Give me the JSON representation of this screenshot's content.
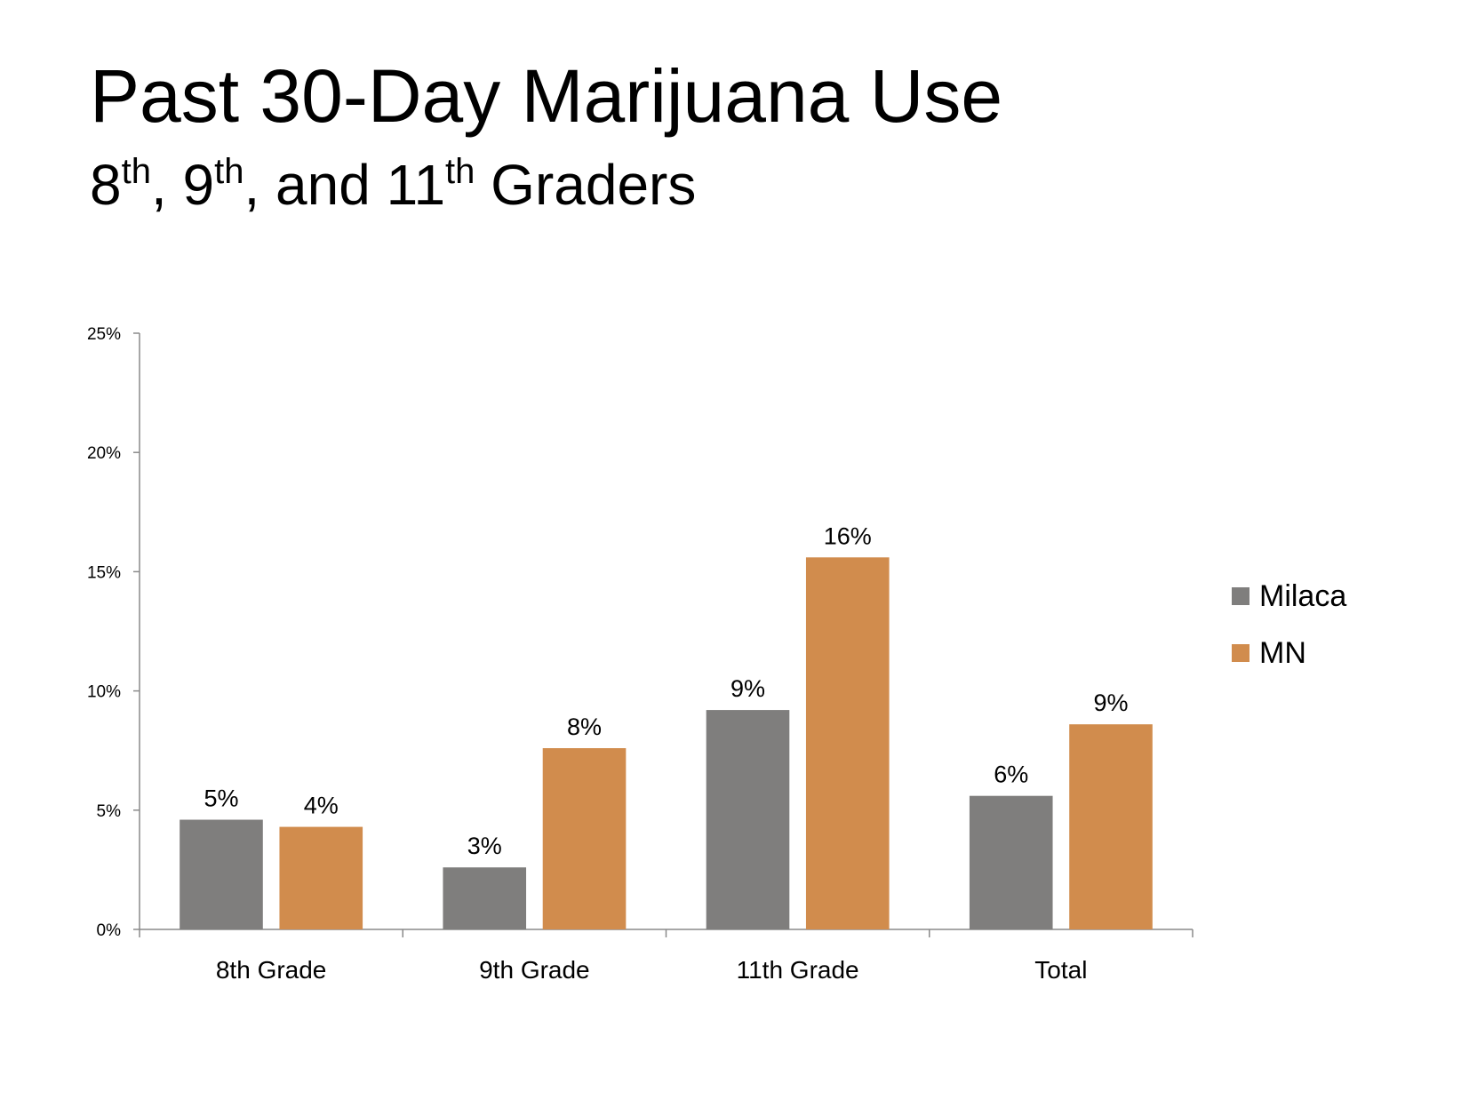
{
  "slide": {
    "title": "Past 30-Day Marijuana Use",
    "subtitle": {
      "part1": "8",
      "sup1": "th",
      "part2": ", 9",
      "sup2": "th",
      "part3": ", and 11",
      "sup3": "th",
      "part4": " Graders"
    }
  },
  "chart_data": {
    "type": "bar",
    "categories": [
      "8th Grade",
      "9th Grade",
      "11th Grade",
      "Total"
    ],
    "series": [
      {
        "name": "Milaca",
        "color": "#7f7e7d",
        "values": [
          4.6,
          2.6,
          9.2,
          5.6
        ],
        "labels": [
          "5%",
          "3%",
          "9%",
          "6%"
        ]
      },
      {
        "name": "MN",
        "color": "#d18c4d",
        "values": [
          4.3,
          7.6,
          15.6,
          8.6
        ],
        "labels": [
          "4%",
          "8%",
          "16%",
          "9%"
        ]
      }
    ],
    "ylim": [
      0,
      25
    ],
    "yticks": [
      0,
      5,
      10,
      15,
      20,
      25
    ],
    "ytick_labels": [
      "0%",
      "5%",
      "10%",
      "15%",
      "20%",
      "25%"
    ],
    "grid": false,
    "legend_position": "right",
    "xlabel": "",
    "ylabel": ""
  }
}
